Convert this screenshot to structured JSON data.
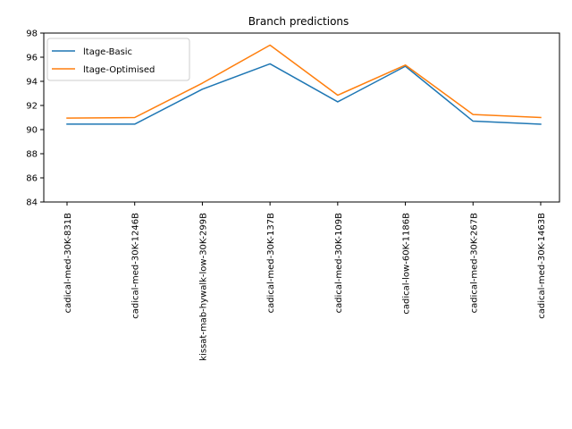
{
  "chart_data": {
    "type": "line",
    "title": "Branch predictions",
    "xlabel": "",
    "ylabel": "",
    "categories": [
      "cadical-med-30K-831B",
      "cadical-med-30K-1246B",
      "kissat-mab-hywalk-low-30K-299B",
      "cadical-med-30K-137B",
      "cadical-med-30K-109B",
      "cadical-low-60K-1186B",
      "cadical-med-30K-267B",
      "cadical-med-30K-1463B"
    ],
    "series": [
      {
        "name": "ltage-Basic",
        "color": "#1f77b4",
        "values": [
          90.45,
          90.45,
          93.35,
          95.45,
          92.3,
          95.25,
          90.7,
          90.45
        ]
      },
      {
        "name": "ltage-Optimised",
        "color": "#ff7f0e",
        "values": [
          90.95,
          91.0,
          93.85,
          97.0,
          92.85,
          95.35,
          91.25,
          91.0
        ]
      }
    ],
    "yticks": [
      84,
      86,
      88,
      90,
      92,
      94,
      96,
      98
    ],
    "ylim": [
      84,
      98
    ],
    "grid": false,
    "legend_position": "upper-left"
  }
}
